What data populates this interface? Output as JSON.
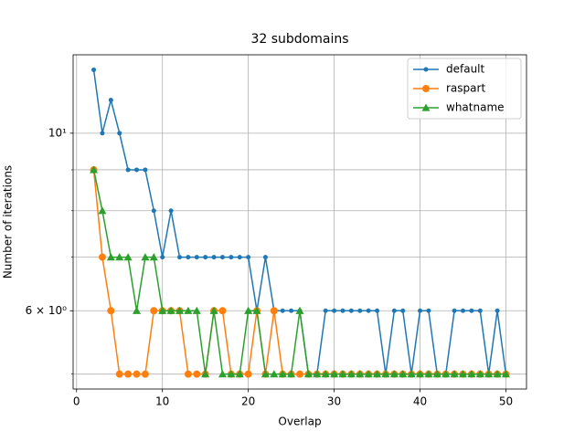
{
  "chart_data": {
    "type": "line",
    "title": "32 subdomains",
    "xlabel": "Overlap",
    "ylabel": "Number of iterations",
    "x": [
      2,
      3,
      4,
      5,
      6,
      7,
      8,
      9,
      10,
      11,
      12,
      13,
      14,
      15,
      16,
      17,
      18,
      19,
      20,
      21,
      22,
      23,
      24,
      25,
      26,
      27,
      28,
      29,
      30,
      31,
      32,
      33,
      34,
      35,
      36,
      37,
      38,
      39,
      40,
      41,
      42,
      43,
      44,
      45,
      46,
      47,
      48,
      49,
      50
    ],
    "series": [
      {
        "name": "default",
        "color": "#1f77b4",
        "marker": "point",
        "values": [
          12,
          10,
          11,
          10,
          9,
          9,
          9,
          8,
          7,
          8,
          7,
          7,
          7,
          7,
          7,
          7,
          7,
          7,
          7,
          6,
          7,
          6,
          6,
          6,
          6,
          5,
          5,
          6,
          6,
          6,
          6,
          6,
          6,
          6,
          5,
          6,
          6,
          5,
          6,
          6,
          5,
          5,
          6,
          6,
          6,
          6,
          5,
          6,
          5
        ]
      },
      {
        "name": "raspart",
        "color": "#ff7f0e",
        "marker": "circle",
        "values": [
          9,
          7,
          6,
          5,
          5,
          5,
          5,
          6,
          6,
          6,
          6,
          5,
          5,
          5,
          6,
          6,
          5,
          5,
          5,
          6,
          5,
          6,
          5,
          5,
          5,
          5,
          5,
          5,
          5,
          5,
          5,
          5,
          5,
          5,
          5,
          5,
          5,
          5,
          5,
          5,
          5,
          5,
          5,
          5,
          5,
          5,
          5,
          5,
          5
        ]
      },
      {
        "name": "whatname",
        "color": "#2ca02c",
        "marker": "triangle",
        "values": [
          9,
          8,
          7,
          7,
          7,
          6,
          7,
          7,
          6,
          6,
          6,
          6,
          6,
          5,
          6,
          5,
          5,
          5,
          6,
          6,
          5,
          5,
          5,
          5,
          6,
          5,
          5,
          5,
          5,
          5,
          5,
          5,
          5,
          5,
          5,
          5,
          5,
          5,
          5,
          5,
          5,
          5,
          5,
          5,
          5,
          5,
          5,
          5,
          5
        ]
      }
    ],
    "xlim": [
      -0.4,
      52.4
    ],
    "xticks": [
      0,
      10,
      20,
      30,
      40,
      50
    ],
    "ylim": [
      4.79,
      12.53
    ],
    "yscale": "log",
    "yticks": [
      {
        "value": 6,
        "label": "6 × 10⁰"
      },
      {
        "value": 10,
        "label": "10¹"
      }
    ],
    "yminorticks": [
      5,
      7,
      8,
      9
    ],
    "grid": true,
    "legend": "upper right"
  }
}
